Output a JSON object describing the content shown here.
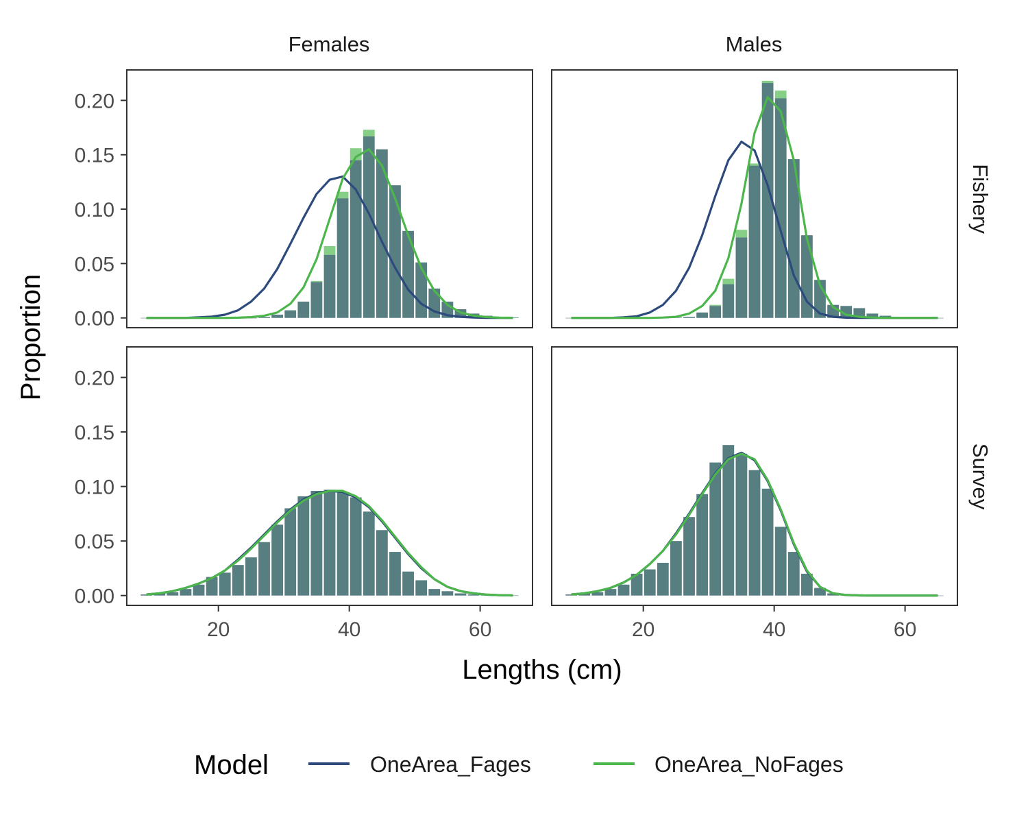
{
  "chart_data": {
    "type": "bar",
    "xlabel": "Lengths (cm)",
    "ylabel": "Proportion",
    "xlim": [
      6,
      68
    ],
    "ylim": [
      -0.009,
      0.228
    ],
    "x_ticks": [
      20,
      40,
      60
    ],
    "x_tick_labels": [
      "20",
      "40",
      "60"
    ],
    "y_ticks": [
      0,
      0.05,
      0.1,
      0.15,
      0.2
    ],
    "y_tick_labels": [
      "0.00",
      "0.05",
      "0.10",
      "0.15",
      "0.20"
    ],
    "columns": [
      "Females",
      "Males"
    ],
    "rows": [
      "Fishery",
      "Survey"
    ],
    "legend": {
      "title": "Model",
      "position": "bottom",
      "entries": [
        {
          "name": "OneArea_Fages",
          "color": "#2e4a7d"
        },
        {
          "name": "OneArea_NoFages",
          "color": "#4cb64c"
        }
      ]
    },
    "colors": {
      "observed_bar": "#577f82",
      "fages_bar": "#7f8aa8",
      "nofages_bar": "#86cf86"
    },
    "x": [
      9,
      11,
      13,
      15,
      17,
      19,
      21,
      23,
      25,
      27,
      29,
      31,
      33,
      35,
      37,
      39,
      41,
      43,
      45,
      47,
      49,
      51,
      53,
      55,
      57,
      59,
      61,
      63,
      65
    ],
    "panels": [
      {
        "row": "Fishery",
        "col": "Females",
        "observed_fages": [
          0,
          0,
          0,
          0,
          0,
          0,
          0,
          0,
          0,
          0.001,
          0.003,
          0.007,
          0.015,
          0.033,
          0.058,
          0.11,
          0.145,
          0.167,
          0.155,
          0.122,
          0.08,
          0.051,
          0.027,
          0.015,
          0.008,
          0.004,
          0.002,
          0.001,
          0.0005
        ],
        "observed_nofages": [
          0,
          0,
          0,
          0,
          0,
          0,
          0,
          0,
          0,
          0.001,
          0.003,
          0.007,
          0.015,
          0.034,
          0.066,
          0.116,
          0.156,
          0.173,
          0.155,
          0.122,
          0.08,
          0.051,
          0.027,
          0.015,
          0.008,
          0.004,
          0.002,
          0.001,
          0.0005
        ],
        "OneArea_Fages": [
          0,
          0,
          0,
          0,
          0.0005,
          0.0012,
          0.003,
          0.007,
          0.015,
          0.027,
          0.045,
          0.068,
          0.092,
          0.114,
          0.127,
          0.13,
          0.118,
          0.096,
          0.07,
          0.046,
          0.026,
          0.013,
          0.006,
          0.0025,
          0.001,
          0.0004,
          0.0001,
          0,
          0
        ],
        "OneArea_NoFages": [
          0,
          0,
          0,
          0,
          0,
          0,
          0,
          0.0002,
          0.0007,
          0.002,
          0.005,
          0.013,
          0.028,
          0.054,
          0.091,
          0.128,
          0.148,
          0.155,
          0.14,
          0.11,
          0.076,
          0.046,
          0.025,
          0.012,
          0.005,
          0.002,
          0.0008,
          0.0002,
          0.0001
        ]
      },
      {
        "row": "Fishery",
        "col": "Males",
        "observed_fages": [
          0,
          0,
          0,
          0,
          0,
          0,
          0,
          0,
          0.0005,
          0.001,
          0.005,
          0.011,
          0.031,
          0.074,
          0.14,
          0.216,
          0.202,
          0.146,
          0.076,
          0.035,
          0.012,
          0.011,
          0.009,
          0.004,
          0.002,
          0.001,
          0.0005,
          0.0002,
          0
        ],
        "observed_nofages": [
          0,
          0,
          0,
          0,
          0,
          0,
          0,
          0,
          0.0005,
          0.001,
          0.005,
          0.012,
          0.036,
          0.081,
          0.142,
          0.218,
          0.209,
          0.146,
          0.076,
          0.035,
          0.012,
          0.011,
          0.009,
          0.004,
          0.002,
          0.001,
          0.0005,
          0.0002,
          0
        ],
        "OneArea_Fages": [
          0,
          0,
          0,
          0,
          0.0005,
          0.0015,
          0.005,
          0.012,
          0.025,
          0.046,
          0.076,
          0.112,
          0.145,
          0.162,
          0.154,
          0.122,
          0.08,
          0.039,
          0.015,
          0.004,
          0.001,
          0.0002,
          0,
          0,
          0,
          0,
          0,
          0,
          0
        ],
        "OneArea_NoFages": [
          0,
          0,
          0,
          0,
          0,
          0,
          0,
          0.0003,
          0.001,
          0.004,
          0.011,
          0.025,
          0.055,
          0.105,
          0.17,
          0.203,
          0.19,
          0.145,
          0.073,
          0.03,
          0.01,
          0.003,
          0.001,
          0.0003,
          0,
          0,
          0,
          0,
          0
        ]
      },
      {
        "row": "Survey",
        "col": "Females",
        "observed_fages": [
          0.001,
          0.002,
          0.003,
          0.006,
          0.01,
          0.017,
          0.021,
          0.028,
          0.035,
          0.049,
          0.065,
          0.08,
          0.091,
          0.096,
          0.097,
          0.095,
          0.09,
          0.077,
          0.06,
          0.04,
          0.022,
          0.014,
          0.006,
          0.004,
          0.002,
          0.001,
          0.0005,
          0.0002,
          0.0001
        ],
        "observed_nofages": [
          0.001,
          0.002,
          0.003,
          0.006,
          0.01,
          0.017,
          0.021,
          0.028,
          0.035,
          0.049,
          0.065,
          0.08,
          0.091,
          0.096,
          0.097,
          0.095,
          0.09,
          0.077,
          0.06,
          0.04,
          0.022,
          0.014,
          0.006,
          0.004,
          0.002,
          0.001,
          0.0005,
          0.0002,
          0.0001
        ],
        "OneArea_Fages": [
          0.001,
          0.002,
          0.004,
          0.007,
          0.011,
          0.016,
          0.023,
          0.033,
          0.044,
          0.056,
          0.068,
          0.079,
          0.088,
          0.094,
          0.096,
          0.095,
          0.09,
          0.081,
          0.068,
          0.053,
          0.038,
          0.025,
          0.015,
          0.008,
          0.004,
          0.002,
          0.0008,
          0.0003,
          0.0001
        ],
        "OneArea_NoFages": [
          0.001,
          0.002,
          0.004,
          0.007,
          0.011,
          0.016,
          0.023,
          0.032,
          0.043,
          0.055,
          0.067,
          0.078,
          0.087,
          0.093,
          0.096,
          0.096,
          0.091,
          0.082,
          0.069,
          0.054,
          0.039,
          0.026,
          0.015,
          0.008,
          0.004,
          0.002,
          0.0008,
          0.0003,
          0.0001
        ]
      },
      {
        "row": "Survey",
        "col": "Males",
        "observed_fages": [
          0.001,
          0.002,
          0.003,
          0.006,
          0.01,
          0.02,
          0.024,
          0.03,
          0.05,
          0.072,
          0.093,
          0.122,
          0.138,
          0.13,
          0.115,
          0.098,
          0.063,
          0.04,
          0.02,
          0.007,
          0.002,
          0.001,
          0.0005,
          0.0002,
          0.0001,
          0,
          0,
          0,
          0
        ],
        "observed_nofages": [
          0.001,
          0.002,
          0.003,
          0.006,
          0.01,
          0.02,
          0.024,
          0.03,
          0.05,
          0.072,
          0.093,
          0.122,
          0.138,
          0.13,
          0.115,
          0.098,
          0.063,
          0.04,
          0.02,
          0.007,
          0.002,
          0.001,
          0.0005,
          0.0002,
          0.0001,
          0,
          0,
          0,
          0
        ],
        "OneArea_Fages": [
          0.001,
          0.002,
          0.004,
          0.007,
          0.012,
          0.019,
          0.029,
          0.041,
          0.057,
          0.075,
          0.094,
          0.112,
          0.126,
          0.131,
          0.124,
          0.105,
          0.078,
          0.047,
          0.022,
          0.008,
          0.002,
          0.0005,
          0.0001,
          0,
          0,
          0,
          0,
          0,
          0
        ],
        "OneArea_NoFages": [
          0.001,
          0.002,
          0.004,
          0.007,
          0.012,
          0.019,
          0.029,
          0.041,
          0.056,
          0.074,
          0.093,
          0.111,
          0.125,
          0.13,
          0.125,
          0.106,
          0.079,
          0.048,
          0.023,
          0.008,
          0.002,
          0.0005,
          0.0001,
          0,
          0,
          0,
          0,
          0,
          0
        ]
      }
    ]
  }
}
